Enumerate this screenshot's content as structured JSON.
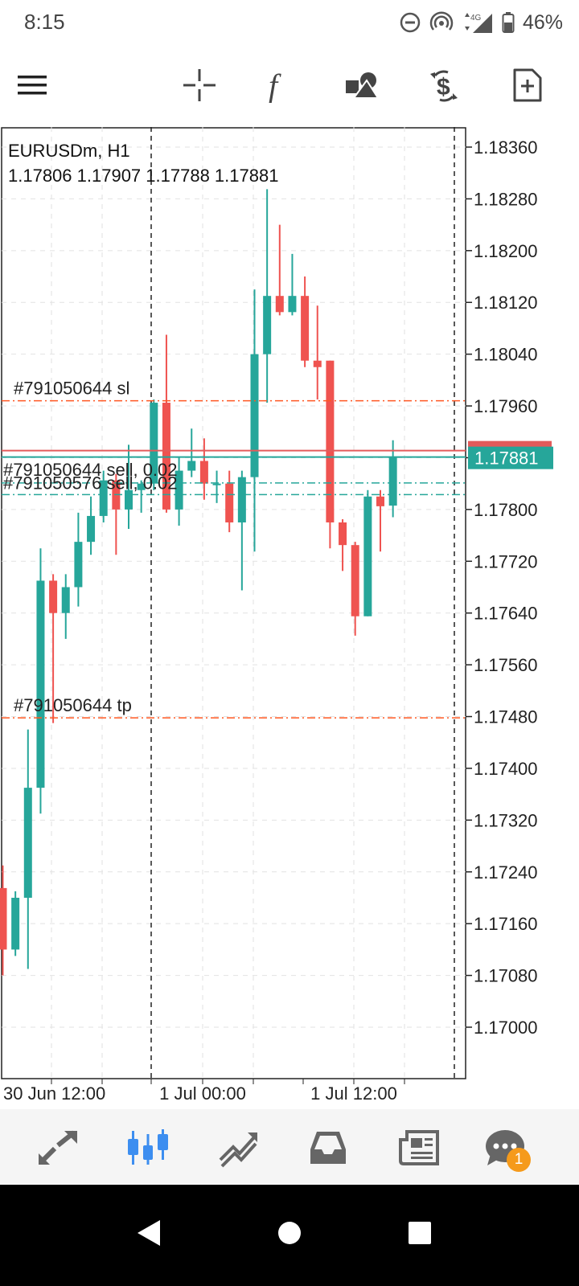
{
  "status_bar": {
    "time": "8:15",
    "network": "4G",
    "battery": "46%"
  },
  "toolbar": {
    "icons": [
      "menu-icon",
      "crosshair-icon",
      "indicator-f-icon",
      "objects-icon",
      "trade-icon",
      "new-order-icon"
    ]
  },
  "chart": {
    "symbol_timeframe": "EURUSDm, H1",
    "ohlc": "1.17806 1.17907 1.17788 1.17881",
    "current_price_label": "1.17881",
    "bid_line_color": "#e35b5b",
    "ask_line_color": "#26a69a",
    "lines": [
      {
        "label": "#791050644 sl",
        "price": 1.17968,
        "color": "#ff5722",
        "style": "dash-dot"
      },
      {
        "label": "#791050644 tp",
        "price": 1.17478,
        "color": "#ff5722",
        "style": "dash-dot"
      },
      {
        "label": "#791050644 sell, 0.02",
        "price": 1.17841,
        "color": "#26a69a",
        "style": "dash-dot"
      },
      {
        "label": "#791050576 sell, 0.02",
        "price": 1.17823,
        "color": "#26a69a",
        "style": "dash-dot"
      }
    ],
    "x_labels": [
      "30 Jun 12:00",
      "1 Jul 00:00",
      "1 Jul 12:00"
    ]
  },
  "chart_data": {
    "type": "candlestick",
    "title": "EURUSDm, H1",
    "ylim": [
      1.1695,
      1.1839
    ],
    "y_ticks": [
      1.1836,
      1.1828,
      1.182,
      1.1812,
      1.1804,
      1.1796,
      1.1788,
      1.178,
      1.1772,
      1.1764,
      1.1756,
      1.1748,
      1.174,
      1.1732,
      1.1724,
      1.1716,
      1.1708,
      1.17
    ],
    "y_tick_labels": [
      "1.18360",
      "1.18280",
      "1.18200",
      "1.18120",
      "1.18040",
      "1.17960",
      "1.17880",
      "1.17800",
      "1.17720",
      "1.17640",
      "1.17560",
      "1.17480",
      "1.17400",
      "1.17320",
      "1.17240",
      "1.17160",
      "1.17080",
      "1.17000"
    ],
    "up_color": "#26a69a",
    "down_color": "#ef5350",
    "candles": [
      {
        "o": 1.17215,
        "h": 1.1725,
        "l": 1.1708,
        "c": 1.1712
      },
      {
        "o": 1.1712,
        "h": 1.1721,
        "l": 1.1711,
        "c": 1.172
      },
      {
        "o": 1.172,
        "h": 1.1746,
        "l": 1.1709,
        "c": 1.1737
      },
      {
        "o": 1.1737,
        "h": 1.1774,
        "l": 1.1733,
        "c": 1.1769
      },
      {
        "o": 1.1769,
        "h": 1.177,
        "l": 1.1747,
        "c": 1.1764
      },
      {
        "o": 1.1764,
        "h": 1.177,
        "l": 1.176,
        "c": 1.1768
      },
      {
        "o": 1.1768,
        "h": 1.17795,
        "l": 1.1765,
        "c": 1.1775
      },
      {
        "o": 1.1775,
        "h": 1.1782,
        "l": 1.1773,
        "c": 1.1779
      },
      {
        "o": 1.1779,
        "h": 1.1786,
        "l": 1.1778,
        "c": 1.17845
      },
      {
        "o": 1.17845,
        "h": 1.17855,
        "l": 1.1773,
        "c": 1.178
      },
      {
        "o": 1.178,
        "h": 1.179,
        "l": 1.1777,
        "c": 1.1783
      },
      {
        "o": 1.1783,
        "h": 1.17845,
        "l": 1.17795,
        "c": 1.1784
      },
      {
        "o": 1.1784,
        "h": 1.1797,
        "l": 1.1783,
        "c": 1.17965
      },
      {
        "o": 1.17965,
        "h": 1.1807,
        "l": 1.17795,
        "c": 1.178
      },
      {
        "o": 1.178,
        "h": 1.1788,
        "l": 1.17775,
        "c": 1.1786
      },
      {
        "o": 1.1786,
        "h": 1.17925,
        "l": 1.1785,
        "c": 1.17875
      },
      {
        "o": 1.17875,
        "h": 1.1791,
        "l": 1.17815,
        "c": 1.1784
      },
      {
        "o": 1.1784,
        "h": 1.1786,
        "l": 1.1781,
        "c": 1.1784
      },
      {
        "o": 1.1784,
        "h": 1.1786,
        "l": 1.17765,
        "c": 1.1778
      },
      {
        "o": 1.1778,
        "h": 1.1786,
        "l": 1.17675,
        "c": 1.1785
      },
      {
        "o": 1.1785,
        "h": 1.1814,
        "l": 1.17735,
        "c": 1.1804
      },
      {
        "o": 1.1804,
        "h": 1.18295,
        "l": 1.17965,
        "c": 1.1813
      },
      {
        "o": 1.1813,
        "h": 1.1824,
        "l": 1.181,
        "c": 1.18105
      },
      {
        "o": 1.18105,
        "h": 1.18195,
        "l": 1.181,
        "c": 1.1813
      },
      {
        "o": 1.1813,
        "h": 1.1816,
        "l": 1.1802,
        "c": 1.1803
      },
      {
        "o": 1.1803,
        "h": 1.18115,
        "l": 1.1797,
        "c": 1.1802
      },
      {
        "o": 1.1803,
        "h": 1.1803,
        "l": 1.1774,
        "c": 1.1778
      },
      {
        "o": 1.1778,
        "h": 1.17785,
        "l": 1.17705,
        "c": 1.17745
      },
      {
        "o": 1.17745,
        "h": 1.1775,
        "l": 1.17605,
        "c": 1.17635
      },
      {
        "o": 1.17635,
        "h": 1.1783,
        "l": 1.17635,
        "c": 1.1782
      },
      {
        "o": 1.1782,
        "h": 1.1783,
        "l": 1.17735,
        "c": 1.17805
      },
      {
        "o": 1.17806,
        "h": 1.17907,
        "l": 1.17788,
        "c": 1.17881
      }
    ]
  },
  "bottom_nav": {
    "items": [
      "quotes-icon",
      "chart-icon",
      "trade-icon",
      "history-icon",
      "news-icon",
      "messages-icon"
    ],
    "active": "chart-icon",
    "messages_badge": "1"
  }
}
